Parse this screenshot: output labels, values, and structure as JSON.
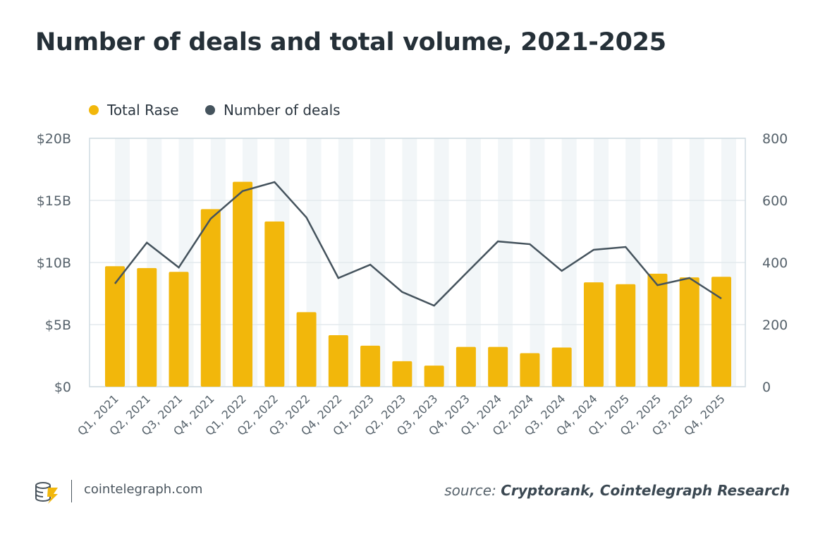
{
  "title": "Number of deals and total volume, 2021-2025",
  "legend": {
    "bars": "Total Rase",
    "line": "Number of deals"
  },
  "footer": {
    "site": "cointelegraph.com",
    "source_prefix": "source:",
    "source_text": "Cryptorank, Cointelegraph Research"
  },
  "colors": {
    "bars": "#f2b70b",
    "line": "#45535d",
    "stripe": "#f2f6f8",
    "grid": "#e3eaee"
  },
  "chart_data": {
    "type": "bar+line",
    "title": "Number of deals and total volume, 2021-2025",
    "categories": [
      "Q1, 2021",
      "Q2, 2021",
      "Q3, 2021",
      "Q4, 2021",
      "Q1, 2022",
      "Q2, 2022",
      "Q3, 2022",
      "Q4, 2022",
      "Q1, 2023",
      "Q2, 2023",
      "Q3, 2023",
      "Q4, 2023",
      "Q1, 2024",
      "Q2, 2024",
      "Q3, 2024",
      "Q4, 2024",
      "Q1, 2025",
      "Q2, 2025",
      "Q3, 2025",
      "Q4, 2025"
    ],
    "series": [
      {
        "name": "Total Rase",
        "type": "bar",
        "axis": "left",
        "unit": "$B",
        "values": [
          9.7,
          9.55,
          9.25,
          14.3,
          16.5,
          13.3,
          6.0,
          4.15,
          3.3,
          2.05,
          1.7,
          3.2,
          3.2,
          2.7,
          3.15,
          8.4,
          8.25,
          9.1,
          8.8,
          8.85
        ]
      },
      {
        "name": "Number of deals",
        "type": "line",
        "axis": "right",
        "values": [
          332,
          464,
          384,
          541,
          630,
          659,
          545,
          350,
          393,
          305,
          261,
          365,
          468,
          459,
          373,
          441,
          450,
          327,
          350,
          284
        ]
      }
    ],
    "y_left": {
      "ylim": [
        0,
        20
      ],
      "ticks": [
        "$0",
        "$5B",
        "$10B",
        "$15B",
        "$20B"
      ]
    },
    "y_right": {
      "ylim": [
        0,
        800
      ],
      "ticks": [
        "0",
        "200",
        "400",
        "600",
        "800"
      ]
    },
    "grid": true,
    "legend_position": "top-left"
  }
}
